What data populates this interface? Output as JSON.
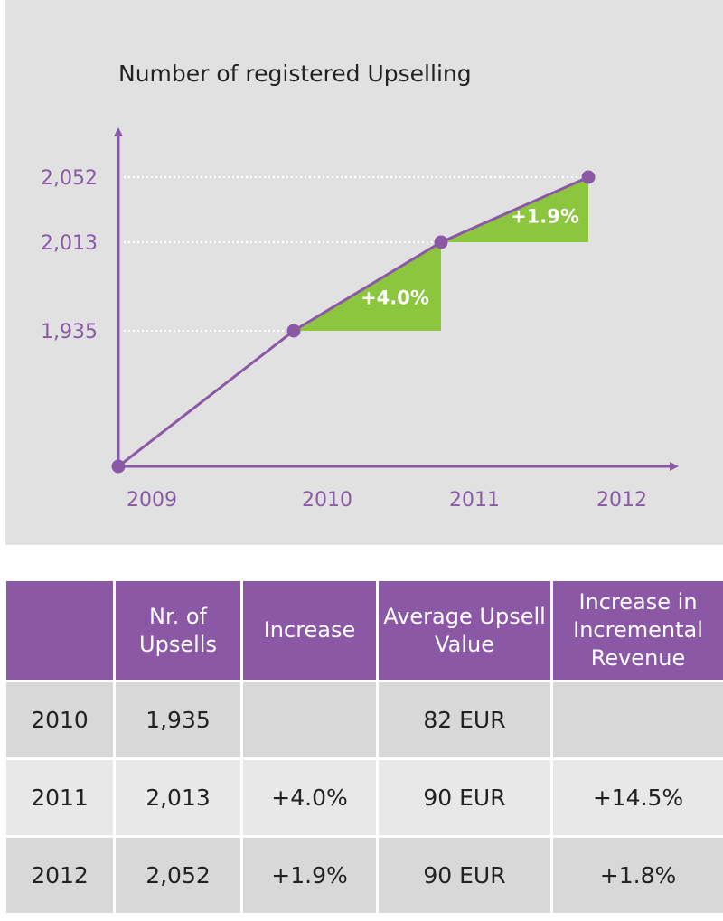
{
  "chart_data": {
    "type": "line",
    "title": "Number of registered Upselling",
    "x": [
      "2009",
      "2010",
      "2011",
      "2012"
    ],
    "series": [
      {
        "name": "Number of registered Upsellings",
        "values": [
          null,
          1935,
          2013,
          2052
        ]
      }
    ],
    "yticks": [
      "2,052",
      "2,013",
      "1,935"
    ],
    "annotations": [
      {
        "from": "2010",
        "to": "2011",
        "label": "+4.0%"
      },
      {
        "from": "2011",
        "to": "2012",
        "label": "+1.9%"
      }
    ],
    "colors": {
      "line": "#8b58a6",
      "growth": "#8cc63f",
      "guide": "#ffffff"
    }
  },
  "table": {
    "headers": [
      "",
      "Nr. of Upsells",
      "Increase",
      "Average Upsell Value",
      "Increase in Incremental Revenue"
    ],
    "rows": [
      [
        "2010",
        "1,935",
        "",
        "82 EUR",
        ""
      ],
      [
        "2011",
        "2,013",
        "+4.0%",
        "90 EUR",
        "+14.5%"
      ],
      [
        "2012",
        "2,052",
        "+1.9%",
        "90 EUR",
        "+1.8%"
      ]
    ]
  }
}
